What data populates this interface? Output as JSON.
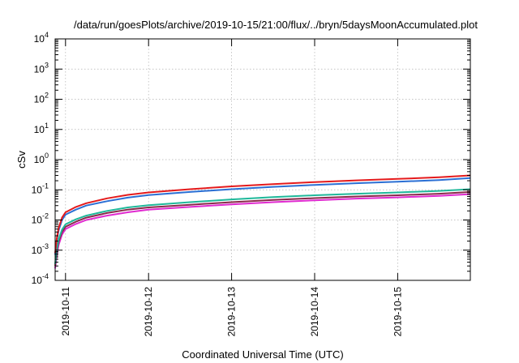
{
  "chart_data": {
    "type": "line",
    "title": "/data/run/goesPlots/archive/2019-10-15/21:00/flux/../bryn/5daysMoonAccumulated.plot",
    "xlabel": "Coordinated Universal Time (UTC)",
    "ylabel": "cSv",
    "y_scale": "log",
    "ylim": [
      0.0001,
      10000
    ],
    "y_ticks": [
      {
        "value": 0.0001,
        "mantissa": "10",
        "exp": "-4"
      },
      {
        "value": 0.001,
        "mantissa": "10",
        "exp": "-3"
      },
      {
        "value": 0.01,
        "mantissa": "10",
        "exp": "-2"
      },
      {
        "value": 0.1,
        "mantissa": "10",
        "exp": "-1"
      },
      {
        "value": 1,
        "mantissa": "10",
        "exp": "0"
      },
      {
        "value": 10,
        "mantissa": "10",
        "exp": "1"
      },
      {
        "value": 100,
        "mantissa": "10",
        "exp": "2"
      },
      {
        "value": 1000,
        "mantissa": "10",
        "exp": "3"
      },
      {
        "value": 10000,
        "mantissa": "10",
        "exp": "4"
      }
    ],
    "xlim": [
      "2019-10-10 21:00",
      "2019-10-15 21:00"
    ],
    "x_ticks": [
      "2019-10-11",
      "2019-10-12",
      "2019-10-13",
      "2019-10-14",
      "2019-10-15"
    ],
    "grid": true,
    "x": [
      "2019-10-10 21:00",
      "2019-10-10 21:30",
      "2019-10-10 22:00",
      "2019-10-10 23:00",
      "2019-10-11 00:00",
      "2019-10-11 03:00",
      "2019-10-11 06:00",
      "2019-10-11 12:00",
      "2019-10-11 18:00",
      "2019-10-12 00:00",
      "2019-10-12 12:00",
      "2019-10-13 00:00",
      "2019-10-13 12:00",
      "2019-10-14 00:00",
      "2019-10-14 12:00",
      "2019-10-15 00:00",
      "2019-10-15 12:00",
      "2019-10-15 21:00"
    ],
    "series": [
      {
        "color": "#e41a1c",
        "values": [
          0.0008,
          0.0025,
          0.0055,
          0.012,
          0.018,
          0.027,
          0.036,
          0.052,
          0.068,
          0.082,
          0.105,
          0.13,
          0.155,
          0.18,
          0.205,
          0.23,
          0.26,
          0.3
        ]
      },
      {
        "color": "#2b6fd4",
        "values": [
          0.0007,
          0.0022,
          0.0045,
          0.01,
          0.015,
          0.022,
          0.03,
          0.042,
          0.055,
          0.067,
          0.085,
          0.105,
          0.125,
          0.145,
          0.165,
          0.185,
          0.21,
          0.245
        ]
      },
      {
        "color": "#1fb89a",
        "values": [
          0.00035,
          0.0011,
          0.0023,
          0.0048,
          0.0072,
          0.0105,
          0.014,
          0.02,
          0.026,
          0.031,
          0.039,
          0.048,
          0.057,
          0.066,
          0.074,
          0.082,
          0.092,
          0.105
        ]
      },
      {
        "color": "#8a2a4a",
        "values": [
          0.0003,
          0.0009,
          0.0019,
          0.004,
          0.006,
          0.0088,
          0.012,
          0.017,
          0.022,
          0.026,
          0.032,
          0.039,
          0.046,
          0.053,
          0.06,
          0.066,
          0.074,
          0.085
        ]
      },
      {
        "color": "#e02ad0",
        "values": [
          0.00025,
          0.0007,
          0.0015,
          0.0033,
          0.005,
          0.0074,
          0.01,
          0.014,
          0.018,
          0.022,
          0.027,
          0.033,
          0.039,
          0.045,
          0.051,
          0.056,
          0.063,
          0.072
        ]
      }
    ]
  }
}
